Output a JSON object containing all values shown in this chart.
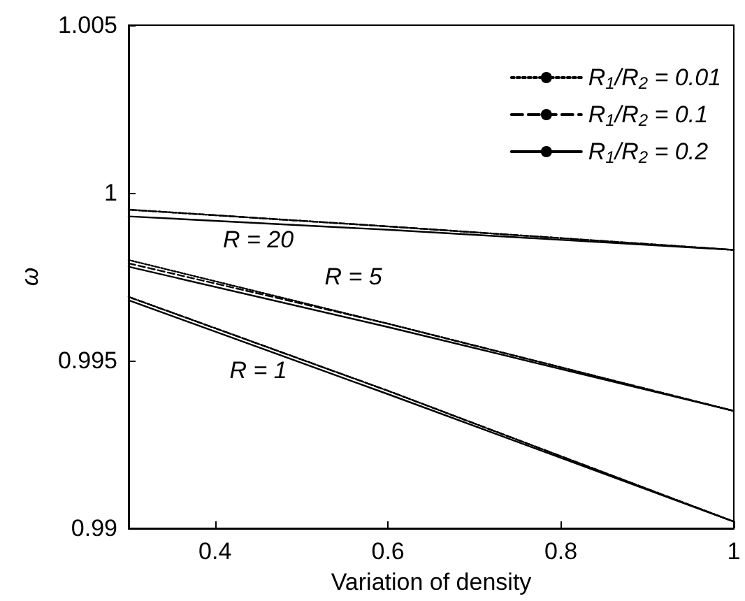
{
  "chart_data": {
    "type": "line",
    "xlabel": "Variation of density",
    "ylabel": "ω",
    "xlim": [
      0.3,
      1
    ],
    "xticks": [
      0.4,
      0.6,
      0.8,
      1
    ],
    "ylim": [
      0.99,
      1.005
    ],
    "yticks": [
      0.99,
      0.995,
      1,
      1.005
    ],
    "x": [
      0.3,
      0.6,
      1
    ],
    "grid": false,
    "legend": "top right",
    "marker": "none",
    "series": [
      {
        "name": "R$_{1}$/R$_{2}$ = 0.01",
        "color": "#000000",
        "line_style": "dotted",
        "values": [
          0.9995,
          0.999,
          0.9983
        ]
      },
      {
        "name": "R$_{1}$/R$_{2}$ = 0.1",
        "color": "#000000",
        "line_style": "dashed",
        "values": [
          0.9995,
          0.999,
          0.9983
        ]
      },
      {
        "name": "R$_{1}$/R$_{2}$ = 0.2",
        "color": "#000000",
        "line_style": "solid",
        "values": [
          0.9993,
          0.9989,
          0.9983
        ]
      },
      {
        "color": "#000000",
        "line_style": "dotted",
        "values": [
          0.998,
          0.9961,
          0.9935
        ]
      },
      {
        "color": "#000000",
        "line_style": "dashed",
        "values": [
          0.9979,
          0.9961,
          0.9935
        ]
      },
      {
        "color": "#000000",
        "line_style": "solid",
        "values": [
          0.9978,
          0.996,
          0.9935
        ]
      },
      {
        "color": "#000000",
        "line_style": "dotted",
        "values": [
          0.9969,
          0.9941,
          0.9902
        ]
      },
      {
        "color": "#000000",
        "line_style": "dashed",
        "values": [
          0.9969,
          0.9941,
          0.9902
        ]
      },
      {
        "color": "#000000",
        "line_style": "solid",
        "values": [
          0.9968,
          0.994,
          0.9902
        ]
      }
    ],
    "annotations": [
      "R = 20",
      "R = 5",
      "R = 1"
    ]
  }
}
